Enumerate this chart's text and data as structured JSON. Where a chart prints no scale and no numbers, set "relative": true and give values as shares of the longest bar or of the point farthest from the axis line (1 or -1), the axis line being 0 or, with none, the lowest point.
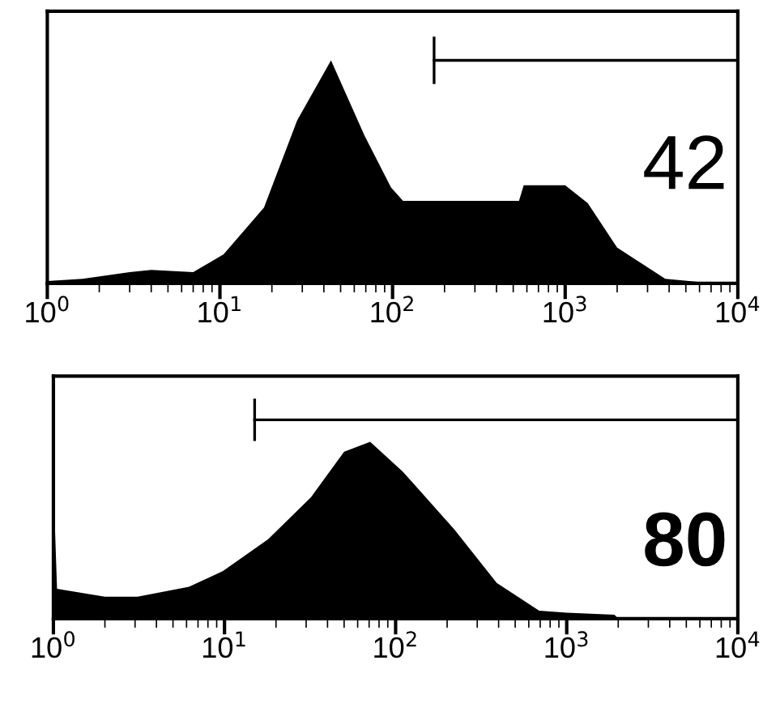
{
  "chart_data": [
    {
      "type": "area",
      "relative": true,
      "log": "x",
      "xlim": [
        1,
        10000
      ],
      "xticks": [
        {
          "value": 1,
          "label": "10$^{0}$"
        },
        {
          "value": 10,
          "label": "10$^{1}$"
        },
        {
          "value": 100,
          "label": "10$^{2}$"
        },
        {
          "value": 1000,
          "label": "10$^{3}$"
        },
        {
          "value": 10000,
          "label": "10$^{4}$"
        }
      ],
      "tick_labels": "x",
      "grid": false,
      "series": [
        {
          "color": "#000000",
          "x": [
            1,
            1.6,
            3,
            4,
            7,
            10.5,
            18,
            28,
            44,
            69,
            98,
            115,
            540,
            575,
            1000,
            1350,
            2000,
            3800,
            7200,
            10000
          ],
          "values": [
            0.01,
            0.02,
            0.05,
            0.06,
            0.05,
            0.13,
            0.34,
            0.73,
            1.0,
            0.66,
            0.43,
            0.37,
            0.37,
            0.44,
            0.44,
            0.36,
            0.16,
            0.02,
            0,
            0
          ]
        },
        {
          "type": "line",
          "color": "#000000",
          "x": [
            174,
            10000
          ],
          "values": [
            1.0,
            1.0
          ]
        }
      ],
      "annotations": [
        "42"
      ]
    },
    {
      "type": "area",
      "relative": true,
      "log": "x",
      "xlim": [
        1,
        10000
      ],
      "xticks": [
        {
          "value": 1,
          "label": "10$^{0}$"
        },
        {
          "value": 10,
          "label": "10$^{1}$"
        },
        {
          "value": 100,
          "label": "10$^{2}$"
        },
        {
          "value": 1000,
          "label": "10$^{3}$"
        },
        {
          "value": 10000,
          "label": "10$^{4}$"
        }
      ],
      "tick_labels": "x",
      "grid": false,
      "series": [
        {
          "color": "#000000",
          "x": [
            1,
            1.05,
            2,
            3.1,
            6.2,
            9.8,
            18,
            32,
            50,
            71,
            110,
            220,
            390,
            690,
            1000,
            1900,
            2000,
            10000
          ],
          "values": [
            0.69,
            0.15,
            0.11,
            0.11,
            0.16,
            0.24,
            0.4,
            0.61,
            0.84,
            0.89,
            0.74,
            0.45,
            0.18,
            0.04,
            0.03,
            0.02,
            0,
            0
          ]
        },
        {
          "type": "line",
          "color": "#000000",
          "x": [
            15,
            10000
          ],
          "values": [
            1.0,
            1.0
          ]
        }
      ],
      "annotations": [
        "80"
      ]
    }
  ]
}
